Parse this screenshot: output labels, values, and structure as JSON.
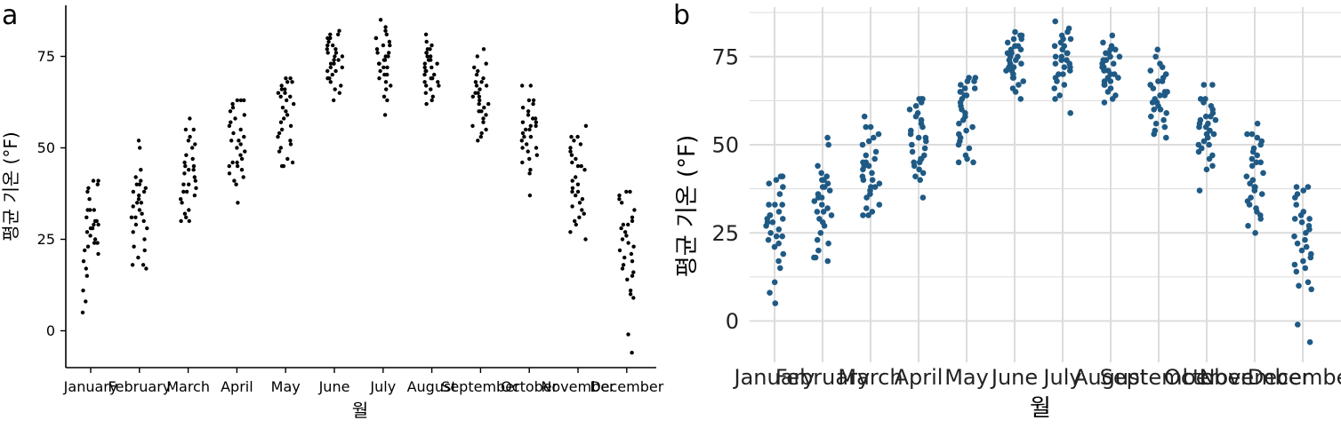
{
  "panels": {
    "a": "a",
    "b": "b"
  },
  "colors": {
    "point_a": "#000000",
    "point_b": "#1f5a85",
    "grid_b": "#dcdcdc",
    "axis": "#000000"
  },
  "chart_data": [
    {
      "type": "scatter",
      "style": "jittered strip plot, classic theme (axis lines, no grid)",
      "panel_label": "a",
      "xlabel": "월",
      "ylabel": "평균 기온 (°F)",
      "categories": [
        "January",
        "February",
        "March",
        "April",
        "May",
        "June",
        "July",
        "August",
        "September",
        "October",
        "November",
        "December"
      ],
      "yticks": [
        0,
        25,
        50,
        75
      ],
      "ylim": [
        -11,
        90
      ],
      "grid": false,
      "values": [
        [
          5,
          8,
          11,
          15,
          17,
          19,
          21,
          22,
          23,
          24,
          24,
          25,
          26,
          27,
          28,
          28,
          29,
          29,
          30,
          30,
          31,
          33,
          33,
          33,
          36,
          38,
          39,
          40,
          41,
          41
        ],
        [
          17,
          18,
          18,
          20,
          22,
          23,
          25,
          27,
          28,
          29,
          30,
          31,
          31,
          32,
          33,
          34,
          35,
          35,
          36,
          37,
          38,
          38,
          39,
          40,
          40,
          41,
          42,
          44,
          50,
          52
        ],
        [
          30,
          30,
          31,
          32,
          33,
          35,
          36,
          37,
          38,
          38,
          39,
          40,
          40,
          41,
          42,
          43,
          44,
          44,
          45,
          45,
          46,
          47,
          48,
          50,
          51,
          52,
          53,
          55,
          55,
          58
        ],
        [
          35,
          40,
          41,
          42,
          43,
          44,
          45,
          45,
          46,
          46,
          47,
          48,
          49,
          50,
          51,
          52,
          52,
          53,
          54,
          55,
          56,
          57,
          58,
          59,
          60,
          61,
          62,
          63,
          63,
          63
        ],
        [
          45,
          45,
          46,
          47,
          49,
          50,
          51,
          52,
          53,
          54,
          55,
          56,
          57,
          58,
          59,
          60,
          61,
          62,
          63,
          64,
          64,
          65,
          65,
          66,
          66,
          67,
          68,
          68,
          69,
          69
        ],
        [
          63,
          65,
          66,
          67,
          68,
          69,
          69,
          70,
          71,
          71,
          72,
          72,
          73,
          73,
          74,
          74,
          75,
          75,
          76,
          76,
          77,
          77,
          78,
          78,
          79,
          80,
          80,
          81,
          81,
          82
        ],
        [
          59,
          63,
          64,
          66,
          67,
          68,
          69,
          70,
          70,
          71,
          72,
          72,
          73,
          73,
          74,
          74,
          75,
          75,
          76,
          76,
          77,
          78,
          78,
          79,
          80,
          80,
          81,
          82,
          83,
          85
        ],
        [
          62,
          63,
          64,
          65,
          66,
          67,
          67,
          68,
          68,
          69,
          69,
          70,
          70,
          71,
          71,
          72,
          72,
          73,
          73,
          74,
          74,
          75,
          75,
          76,
          76,
          77,
          77,
          78,
          79,
          81
        ],
        [
          52,
          53,
          54,
          55,
          56,
          57,
          58,
          59,
          60,
          60,
          61,
          62,
          62,
          63,
          64,
          64,
          65,
          65,
          66,
          67,
          67,
          68,
          68,
          69,
          70,
          71,
          72,
          73,
          75,
          77
        ],
        [
          37,
          43,
          44,
          46,
          47,
          48,
          49,
          50,
          50,
          51,
          52,
          53,
          53,
          54,
          55,
          55,
          56,
          56,
          57,
          57,
          58,
          58,
          59,
          60,
          61,
          62,
          63,
          63,
          67,
          67
        ],
        [
          25,
          27,
          29,
          30,
          31,
          32,
          33,
          34,
          35,
          36,
          37,
          38,
          38,
          39,
          40,
          41,
          42,
          44,
          45,
          45,
          46,
          47,
          48,
          49,
          50,
          51,
          52,
          53,
          53,
          56
        ],
        [
          -6,
          -1,
          9,
          10,
          11,
          14,
          15,
          16,
          17,
          18,
          19,
          20,
          21,
          22,
          23,
          24,
          25,
          26,
          27,
          28,
          29,
          29,
          30,
          31,
          33,
          35,
          36,
          37,
          38,
          38
        ]
      ]
    },
    {
      "type": "scatter",
      "style": "jittered strip plot, minimal theme (light grid)",
      "panel_label": "b",
      "xlabel": "월",
      "ylabel": "평균 기온 (°F)",
      "categories": [
        "January",
        "February",
        "March",
        "April",
        "May",
        "June",
        "July",
        "August",
        "September",
        "October",
        "November",
        "December"
      ],
      "yticks": [
        0,
        25,
        50,
        75
      ],
      "ylim": [
        -8,
        87
      ],
      "grid": true,
      "values": "same as panel a"
    }
  ]
}
